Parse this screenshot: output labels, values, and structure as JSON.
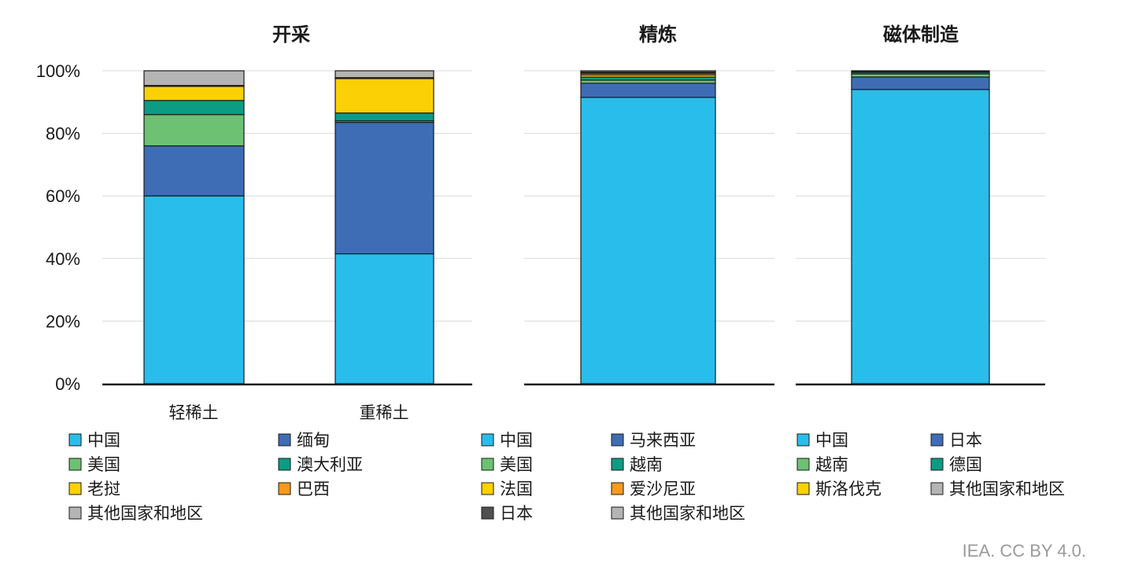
{
  "credit": "IEA. CC BY 4.0.",
  "chart_data": {
    "type": "bar",
    "stacked": true,
    "ylim": [
      0,
      100
    ],
    "y_ticks": [
      "0%",
      "20%",
      "40%",
      "60%",
      "80%",
      "100%"
    ],
    "grid": true,
    "colors": {
      "中国": "#29bdec",
      "缅甸": "#3e6db5",
      "马来西亚": "#3e6db5",
      "日本_blue": "#3e6db5",
      "美国": "#6dc173",
      "越南_green": "#6dc173",
      "澳大利亚": "#0c9c84",
      "越南_teal": "#0c9c84",
      "德国": "#0c9c84",
      "老挝": "#fbd105",
      "法国": "#fbd105",
      "斯洛伐克": "#fbd105",
      "巴西": "#f79a1d",
      "爱沙尼亚": "#f79a1d",
      "日本_dark": "#505050",
      "其他国家和地区": "#b4b4b4"
    },
    "panels": [
      {
        "title": "开采",
        "categories": [
          "轻稀土",
          "重稀土"
        ],
        "series": [
          {
            "name": "中国",
            "color": "#29bdec",
            "values": [
              60,
              41.5
            ]
          },
          {
            "name": "缅甸",
            "color": "#3e6db5",
            "values": [
              16,
              42
            ]
          },
          {
            "name": "美国",
            "color": "#6dc173",
            "values": [
              10,
              0.5
            ]
          },
          {
            "name": "澳大利亚",
            "color": "#0c9c84",
            "values": [
              4.5,
              2.5
            ]
          },
          {
            "name": "老挝",
            "color": "#fbd105",
            "values": [
              4.5,
              11
            ]
          },
          {
            "name": "巴西",
            "color": "#f79a1d",
            "values": [
              0.3,
              0.3
            ]
          },
          {
            "name": "其他国家和地区",
            "color": "#b4b4b4",
            "values": [
              4.7,
              2.2
            ]
          }
        ]
      },
      {
        "title": "精炼",
        "categories": [
          ""
        ],
        "series": [
          {
            "name": "中国",
            "color": "#29bdec",
            "values": [
              91.5
            ]
          },
          {
            "name": "马来西亚",
            "color": "#3e6db5",
            "values": [
              4.5
            ]
          },
          {
            "name": "美国",
            "color": "#6dc173",
            "values": [
              1
            ]
          },
          {
            "name": "越南",
            "color": "#0c9c84",
            "values": [
              1
            ]
          },
          {
            "name": "法国",
            "color": "#fbd105",
            "values": [
              0.7
            ]
          },
          {
            "name": "爱沙尼亚",
            "color": "#f79a1d",
            "values": [
              0.5
            ]
          },
          {
            "name": "日本",
            "color": "#505050",
            "values": [
              0.4
            ]
          },
          {
            "name": "其他国家和地区",
            "color": "#b4b4b4",
            "values": [
              0.4
            ]
          }
        ]
      },
      {
        "title": "磁体制造",
        "categories": [
          ""
        ],
        "series": [
          {
            "name": "中国",
            "color": "#29bdec",
            "values": [
              94
            ]
          },
          {
            "name": "日本",
            "color": "#3e6db5",
            "values": [
              4
            ]
          },
          {
            "name": "越南",
            "color": "#6dc173",
            "values": [
              1
            ]
          },
          {
            "name": "德国",
            "color": "#0c9c84",
            "values": [
              0.5
            ]
          },
          {
            "name": "斯洛伐克",
            "color": "#fbd105",
            "values": [
              0.3
            ]
          },
          {
            "name": "其他国家和地区",
            "color": "#b4b4b4",
            "values": [
              0.2
            ]
          }
        ]
      }
    ],
    "legends": [
      {
        "columns": 2,
        "items": [
          {
            "label": "中国",
            "color": "#29bdec"
          },
          {
            "label": "缅甸",
            "color": "#3e6db5"
          },
          {
            "label": "美国",
            "color": "#6dc173"
          },
          {
            "label": "澳大利亚",
            "color": "#0c9c84"
          },
          {
            "label": "老挝",
            "color": "#fbd105"
          },
          {
            "label": "巴西",
            "color": "#f79a1d"
          },
          {
            "label": "其他国家和地区",
            "color": "#b4b4b4"
          }
        ]
      },
      {
        "columns": 2,
        "items": [
          {
            "label": "中国",
            "color": "#29bdec"
          },
          {
            "label": "马来西亚",
            "color": "#3e6db5"
          },
          {
            "label": "美国",
            "color": "#6dc173"
          },
          {
            "label": "越南",
            "color": "#0c9c84"
          },
          {
            "label": "法国",
            "color": "#fbd105"
          },
          {
            "label": "爱沙尼亚",
            "color": "#f79a1d"
          },
          {
            "label": "日本",
            "color": "#505050"
          },
          {
            "label": "其他国家和地区",
            "color": "#b4b4b4"
          }
        ]
      },
      {
        "columns": 2,
        "items": [
          {
            "label": "中国",
            "color": "#29bdec"
          },
          {
            "label": "日本",
            "color": "#3e6db5"
          },
          {
            "label": "越南",
            "color": "#6dc173"
          },
          {
            "label": "德国",
            "color": "#0c9c84"
          },
          {
            "label": "斯洛伐克",
            "color": "#fbd105"
          },
          {
            "label": "其他国家和地区",
            "color": "#b4b4b4"
          }
        ]
      }
    ]
  }
}
